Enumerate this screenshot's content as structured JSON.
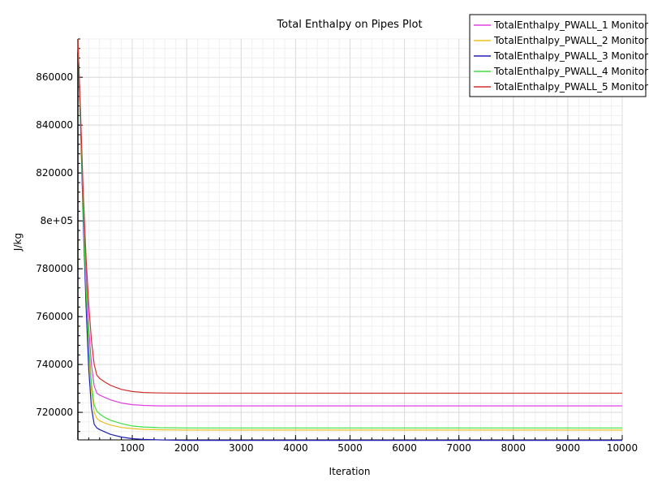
{
  "chart_data": {
    "type": "line",
    "title": "Total Enthalpy on Pipes Plot",
    "xlabel": "Iteration",
    "ylabel": "J/kg",
    "xlim": [
      1,
      10000
    ],
    "ylim": [
      708500,
      876000
    ],
    "x_ticks": [
      1000,
      2000,
      3000,
      4000,
      5000,
      6000,
      7000,
      8000,
      9000,
      10000
    ],
    "y_ticks": [
      {
        "value": 720000,
        "label": "720000"
      },
      {
        "value": 740000,
        "label": "740000"
      },
      {
        "value": 760000,
        "label": "760000"
      },
      {
        "value": 780000,
        "label": "780000"
      },
      {
        "value": 800000,
        "label": "8e+05"
      },
      {
        "value": 820000,
        "label": "820000"
      },
      {
        "value": 840000,
        "label": "840000"
      },
      {
        "value": 860000,
        "label": "860000"
      }
    ],
    "grid": true,
    "legend_position": "top-right",
    "series": [
      {
        "name": "TotalEnthalpy_PWALL_1 Monitor",
        "color": "#e040e0",
        "x": [
          1,
          50,
          100,
          150,
          200,
          250,
          300,
          350,
          400,
          500,
          600,
          800,
          1000,
          1200,
          1500,
          2000,
          3000,
          10000
        ],
        "y": [
          876000,
          843000,
          808000,
          778000,
          755000,
          740000,
          731000,
          728000,
          727200,
          726200,
          725200,
          723900,
          723200,
          722900,
          722700,
          722700,
          722700,
          722700
        ]
      },
      {
        "name": "TotalEnthalpy_PWALL_2 Monitor",
        "color": "#e8c020",
        "x": [
          1,
          50,
          100,
          150,
          200,
          250,
          300,
          350,
          400,
          500,
          600,
          800,
          1000,
          1200,
          1500,
          2000,
          3000,
          10000
        ],
        "y": [
          876000,
          841000,
          803000,
          770000,
          745000,
          729000,
          720000,
          717500,
          716500,
          715500,
          714700,
          713700,
          713200,
          712900,
          712700,
          712600,
          712600,
          712600
        ]
      },
      {
        "name": "TotalEnthalpy_PWALL_3 Monitor",
        "color": "#2020b0",
        "x": [
          1,
          50,
          100,
          150,
          200,
          250,
          300,
          350,
          400,
          500,
          600,
          800,
          1000,
          1200,
          1500,
          1700,
          2000,
          10000
        ],
        "y": [
          876000,
          840000,
          800000,
          765000,
          738000,
          722000,
          715000,
          713500,
          712800,
          711800,
          710800,
          709700,
          709000,
          708700,
          708500,
          708400,
          708300,
          708300
        ]
      },
      {
        "name": "TotalEnthalpy_PWALL_4 Monitor",
        "color": "#40e040",
        "x": [
          1,
          50,
          100,
          150,
          200,
          250,
          300,
          350,
          400,
          500,
          600,
          800,
          1000,
          1200,
          1500,
          2000,
          3000,
          10000
        ],
        "y": [
          876000,
          842000,
          805000,
          772000,
          748000,
          732000,
          723000,
          720500,
          719300,
          717800,
          716700,
          715300,
          714300,
          713900,
          713600,
          713500,
          713500,
          713500
        ]
      },
      {
        "name": "TotalEnthalpy_PWALL_5 Monitor",
        "color": "#d03030",
        "x": [
          1,
          50,
          100,
          150,
          200,
          250,
          300,
          350,
          400,
          500,
          600,
          800,
          1000,
          1200,
          1500,
          2000,
          3000,
          10000
        ],
        "y": [
          876000,
          845000,
          812000,
          785000,
          765000,
          750000,
          740000,
          735500,
          734200,
          732600,
          731300,
          729600,
          728700,
          728300,
          728100,
          728000,
          728000,
          728000
        ]
      }
    ]
  }
}
